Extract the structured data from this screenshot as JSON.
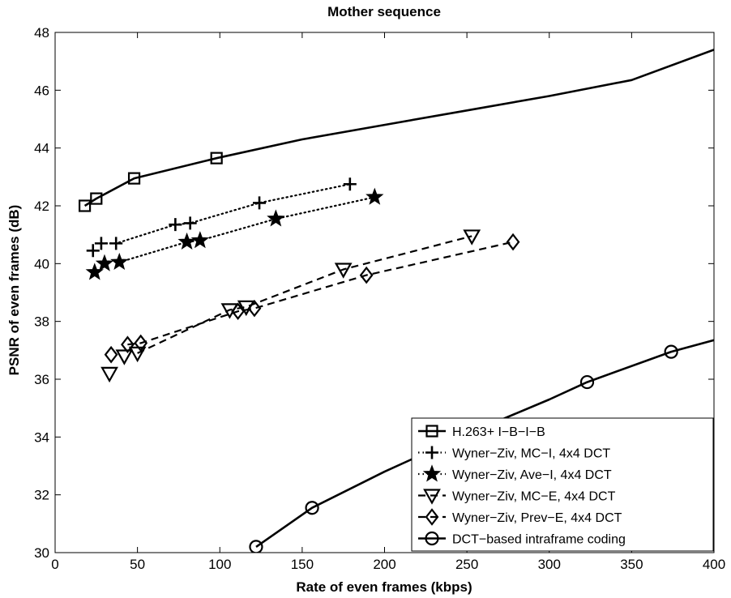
{
  "chart_data": {
    "type": "line",
    "title": "Mother sequence",
    "xlabel": "Rate of even frames (kbps)",
    "ylabel": "PSNR of even frames (dB)",
    "xlim": [
      0,
      400
    ],
    "ylim": [
      30,
      48
    ],
    "xticks": [
      "0",
      "50",
      "100",
      "150",
      "200",
      "250",
      "300",
      "350",
      "400"
    ],
    "yticks": [
      "30",
      "32",
      "34",
      "36",
      "38",
      "40",
      "42",
      "44",
      "46",
      "48"
    ],
    "grid": false,
    "legend_position": "bottom-right",
    "series": [
      {
        "name": "H.263+ I−B−I−B",
        "marker": "square",
        "line": "solid",
        "points": [
          [
            18,
            42.0
          ],
          [
            25,
            42.25
          ],
          [
            48,
            42.95
          ],
          [
            98,
            43.65
          ]
        ],
        "curve": [
          [
            18,
            42.0
          ],
          [
            25,
            42.25
          ],
          [
            48,
            42.95
          ],
          [
            98,
            43.65
          ],
          [
            150,
            44.3
          ],
          [
            200,
            44.8
          ],
          [
            250,
            45.3
          ],
          [
            300,
            45.8
          ],
          [
            350,
            46.35
          ],
          [
            400,
            47.4
          ]
        ]
      },
      {
        "name": "Wyner−Ziv, MC−I, 4x4 DCT",
        "marker": "plus",
        "line": "dotted",
        "points": [
          [
            23,
            40.45
          ],
          [
            28,
            40.7
          ],
          [
            37,
            40.7
          ],
          [
            73,
            41.35
          ],
          [
            82,
            41.4
          ],
          [
            124,
            42.1
          ],
          [
            179,
            42.75
          ]
        ],
        "curve": [
          [
            28,
            40.7
          ],
          [
            37,
            40.7
          ],
          [
            73,
            41.35
          ],
          [
            82,
            41.4
          ],
          [
            124,
            42.1
          ],
          [
            179,
            42.75
          ]
        ]
      },
      {
        "name": "Wyner−Ziv, Ave−I, 4x4 DCT",
        "marker": "star",
        "line": "dotted",
        "points": [
          [
            24,
            39.7
          ],
          [
            30,
            40.0
          ],
          [
            39,
            40.05
          ],
          [
            80,
            40.75
          ],
          [
            88,
            40.8
          ],
          [
            134,
            41.55
          ],
          [
            194,
            42.3
          ]
        ],
        "curve": [
          [
            39,
            40.05
          ],
          [
            80,
            40.75
          ],
          [
            88,
            40.8
          ],
          [
            134,
            41.55
          ],
          [
            194,
            42.3
          ]
        ]
      },
      {
        "name": "Wyner−Ziv, MC−E, 4x4 DCT",
        "marker": "triangle-down",
        "line": "dashed",
        "points": [
          [
            33,
            36.2
          ],
          [
            42,
            36.8
          ],
          [
            50,
            36.9
          ],
          [
            106,
            38.4
          ],
          [
            116,
            38.5
          ],
          [
            175,
            39.8
          ],
          [
            253,
            40.95
          ]
        ],
        "curve": [
          [
            50,
            36.9
          ],
          [
            106,
            38.4
          ],
          [
            116,
            38.5
          ],
          [
            175,
            39.8
          ],
          [
            253,
            40.95
          ]
        ]
      },
      {
        "name": "Wyner−Ziv, Prev−E, 4x4 DCT",
        "marker": "diamond",
        "line": "dashed",
        "points": [
          [
            34,
            36.85
          ],
          [
            44,
            37.2
          ],
          [
            52,
            37.25
          ],
          [
            111,
            38.35
          ],
          [
            121,
            38.45
          ],
          [
            189,
            39.6
          ],
          [
            278,
            40.75
          ]
        ],
        "curve": [
          [
            44,
            37.2
          ],
          [
            52,
            37.25
          ],
          [
            111,
            38.35
          ],
          [
            121,
            38.45
          ],
          [
            189,
            39.6
          ],
          [
            278,
            40.75
          ]
        ]
      },
      {
        "name": "DCT−based intraframe coding",
        "marker": "circle",
        "line": "solid",
        "points": [
          [
            122,
            30.2
          ],
          [
            156,
            31.55
          ],
          [
            323,
            35.9
          ],
          [
            374,
            36.95
          ]
        ],
        "curve": [
          [
            122,
            30.2
          ],
          [
            156,
            31.55
          ],
          [
            200,
            32.8
          ],
          [
            250,
            34.1
          ],
          [
            300,
            35.3
          ],
          [
            323,
            35.9
          ],
          [
            374,
            36.95
          ],
          [
            400,
            37.35
          ]
        ]
      }
    ]
  }
}
